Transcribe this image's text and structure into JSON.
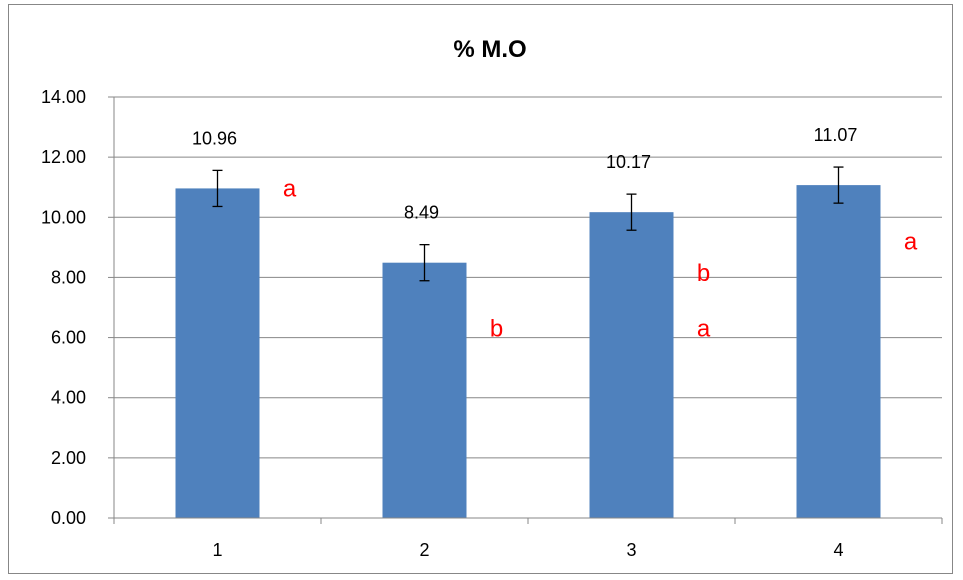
{
  "chart_data": {
    "type": "bar",
    "title": "% M.O",
    "xlabel": "",
    "ylabel": "",
    "categories": [
      "1",
      "2",
      "3",
      "4"
    ],
    "values": [
      10.96,
      8.49,
      10.17,
      11.07
    ],
    "errors": [
      0.6,
      0.6,
      0.6,
      0.6
    ],
    "data_labels": [
      "10.96",
      "8.49",
      "10.17",
      "11.07"
    ],
    "ylim": [
      0,
      14
    ],
    "y_ticks": [
      "0.00",
      "2.00",
      "4.00",
      "6.00",
      "8.00",
      "10.00",
      "12.00",
      "14.00"
    ],
    "y_tick_values": [
      0,
      2,
      4,
      6,
      8,
      10,
      12,
      14
    ],
    "grid": true,
    "legend": "none",
    "bar_color": "#4F81BD",
    "letters_color": "#FF0000",
    "annotations": [
      {
        "text": "a",
        "category": "1",
        "y": 10.96
      },
      {
        "text": "b",
        "category": "2",
        "y": 6.3
      },
      {
        "text": "b",
        "category": "3",
        "y": 8.15
      },
      {
        "text": "a",
        "category": "3",
        "y": 6.3
      },
      {
        "text": "a",
        "category": "4",
        "y": 9.2
      }
    ]
  }
}
